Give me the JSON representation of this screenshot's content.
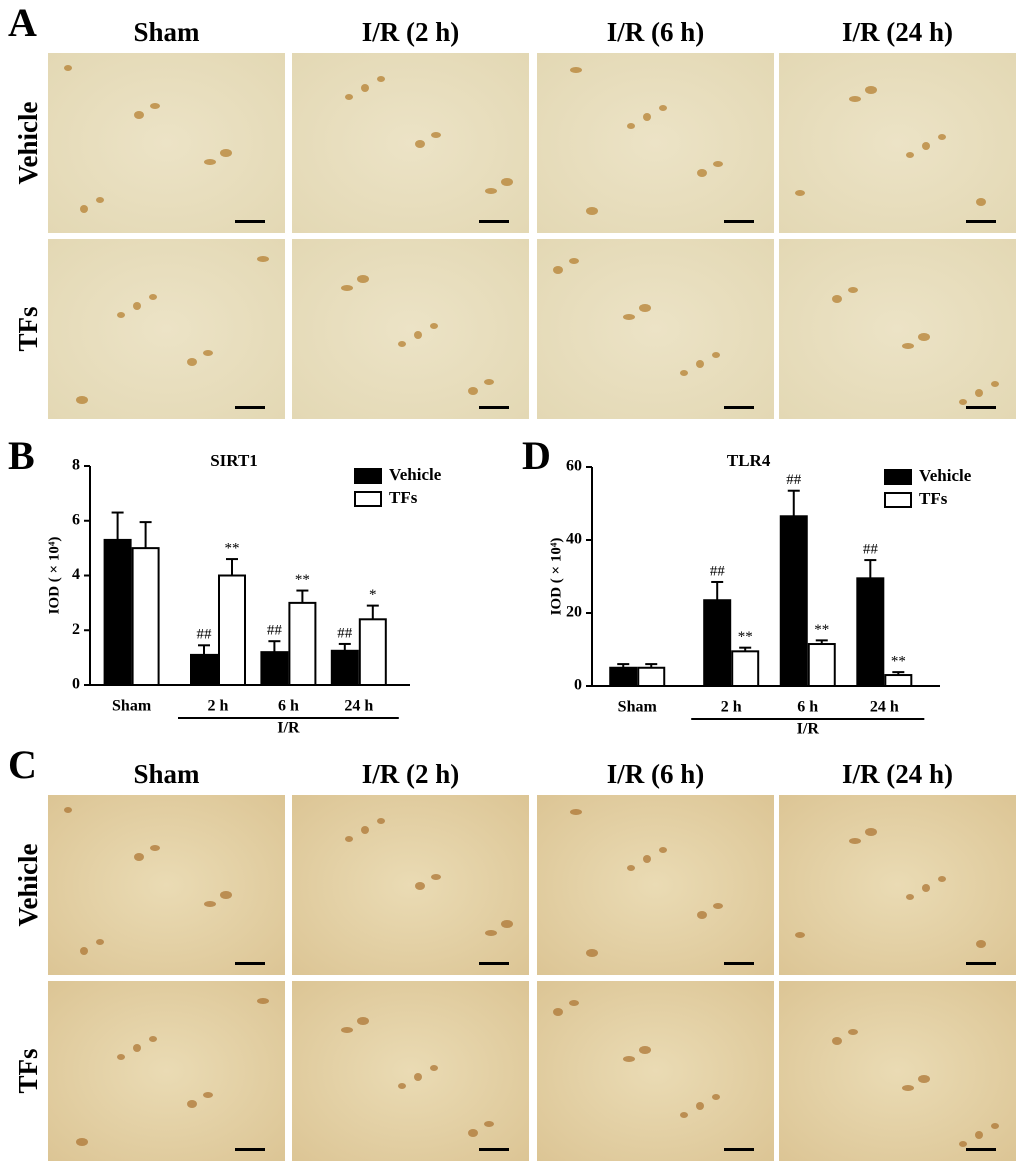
{
  "panel_a": {
    "label": "A",
    "columns": [
      "Sham",
      "I/R (2 h)",
      "I/R (6 h)",
      "I/R (24 h)"
    ],
    "rows": [
      "Vehicle",
      "TFs"
    ]
  },
  "chart_data": [
    {
      "type": "bar",
      "label": "B",
      "title": "SIRT1",
      "ylabel": "IOD ( × 10⁴)",
      "categories": [
        "Sham",
        "2 h",
        "6 h",
        "24 h"
      ],
      "group_label": "I/R",
      "ylim": [
        0,
        8
      ],
      "yticks": [
        0,
        2,
        4,
        6,
        8
      ],
      "legend": "top-right",
      "series": [
        {
          "name": "Vehicle",
          "color": "#000000",
          "values": [
            5.3,
            1.1,
            1.2,
            1.25
          ],
          "errors": [
            1.0,
            0.35,
            0.4,
            0.25
          ],
          "annotations": [
            null,
            "##",
            "##",
            "##"
          ]
        },
        {
          "name": "TFs",
          "color": "#ffffff",
          "values": [
            5.0,
            4.0,
            3.0,
            2.4
          ],
          "errors": [
            0.95,
            0.6,
            0.45,
            0.5
          ],
          "annotations": [
            null,
            "**",
            "**",
            "*"
          ]
        }
      ]
    },
    {
      "type": "bar",
      "label": "D",
      "title": "TLR4",
      "ylabel": "IOD ( × 10⁴)",
      "categories": [
        "Sham",
        "2 h",
        "6 h",
        "24 h"
      ],
      "group_label": "I/R",
      "ylim": [
        0,
        60
      ],
      "yticks": [
        0,
        20,
        40,
        60
      ],
      "legend": "top-right",
      "series": [
        {
          "name": "Vehicle",
          "color": "#000000",
          "values": [
            5,
            23.5,
            46.5,
            29.5
          ],
          "errors": [
            1,
            5,
            7,
            5
          ],
          "annotations": [
            null,
            "##",
            "##",
            "##"
          ]
        },
        {
          "name": "TFs",
          "color": "#ffffff",
          "values": [
            5,
            9.5,
            11.5,
            3
          ],
          "errors": [
            1,
            1,
            1,
            0.8
          ],
          "annotations": [
            null,
            "**",
            "**",
            "**"
          ]
        }
      ]
    }
  ],
  "panel_c": {
    "label": "C",
    "columns": [
      "Sham",
      "I/R (2 h)",
      "I/R (6 h)",
      "I/R (24 h)"
    ],
    "rows": [
      "Vehicle",
      "TFs"
    ]
  }
}
